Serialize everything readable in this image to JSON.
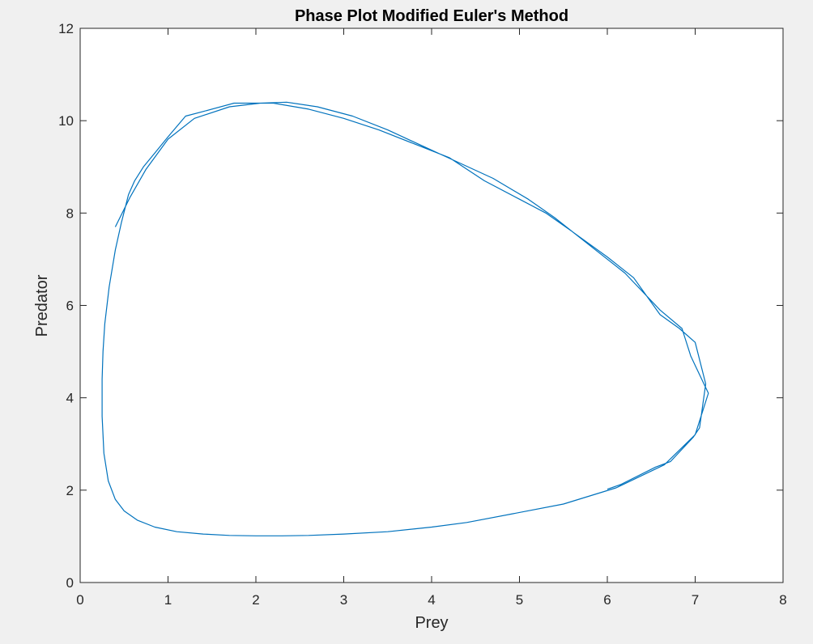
{
  "chart_data": {
    "type": "line",
    "title": "Phase Plot Modified Euler's Method",
    "xlabel": "Prey",
    "ylabel": "Predator",
    "xlim": [
      0,
      8
    ],
    "ylim": [
      0,
      12
    ],
    "xticks": [
      "0",
      "1",
      "2",
      "3",
      "4",
      "5",
      "6",
      "7",
      "8"
    ],
    "yticks": [
      "0",
      "2",
      "4",
      "6",
      "8",
      "10",
      "12"
    ],
    "grid": false,
    "colors": {
      "line": "#0072bd",
      "axes": "#262626",
      "plot_bg": "#ffffff",
      "figure_bg": "#f0f0f0"
    },
    "series": [
      {
        "x": [
          6.0,
          6.15,
          6.55,
          6.72,
          6.98,
          7.05,
          7.12,
          7.0,
          6.82,
          6.6,
          6.3,
          6.0,
          5.6,
          5.3,
          5.0,
          4.6,
          4.2,
          3.8,
          3.4,
          3.0,
          2.6,
          2.2,
          1.75,
          1.4,
          1.2,
          1.0,
          0.85,
          0.72,
          0.62,
          0.55,
          0.47,
          0.4,
          0.33,
          0.28,
          0.26,
          0.25,
          0.25,
          0.27,
          0.32,
          0.4,
          0.5,
          0.65,
          0.85,
          1.1,
          1.4,
          1.7,
          2.0,
          2.3,
          2.6,
          3.0,
          3.5,
          4.0,
          4.4,
          4.9,
          5.5,
          6.1,
          6.65,
          7.0,
          7.15,
          7.1,
          6.95,
          6.85,
          6.6,
          6.2,
          5.8,
          5.4,
          5.1,
          4.7,
          4.3,
          3.9,
          3.5,
          3.1,
          2.7,
          2.35,
          2.05,
          1.7,
          1.3,
          1.0,
          0.75,
          0.57,
          0.4
        ],
        "y": [
          2.02,
          2.12,
          2.5,
          2.62,
          3.15,
          3.35,
          4.3,
          5.2,
          5.5,
          5.8,
          6.6,
          7.05,
          7.6,
          8.0,
          8.3,
          8.7,
          9.2,
          9.5,
          9.8,
          10.05,
          10.25,
          10.38,
          10.38,
          10.2,
          10.1,
          9.65,
          9.3,
          9.0,
          8.7,
          8.4,
          7.8,
          7.2,
          6.4,
          5.6,
          5.0,
          4.4,
          3.6,
          2.8,
          2.2,
          1.8,
          1.55,
          1.35,
          1.2,
          1.1,
          1.05,
          1.02,
          1.01,
          1.01,
          1.02,
          1.05,
          1.1,
          1.2,
          1.3,
          1.48,
          1.7,
          2.05,
          2.55,
          3.2,
          4.1,
          4.3,
          4.9,
          5.5,
          5.9,
          6.7,
          7.3,
          7.9,
          8.3,
          8.75,
          9.1,
          9.45,
          9.8,
          10.1,
          10.3,
          10.4,
          10.38,
          10.3,
          10.05,
          9.6,
          8.95,
          8.35,
          7.7
        ]
      }
    ]
  }
}
